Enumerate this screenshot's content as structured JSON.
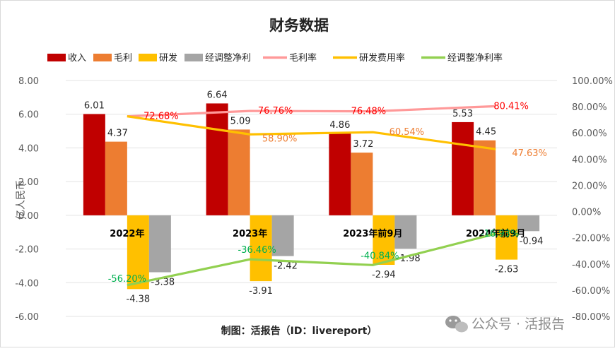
{
  "chart_data": {
    "type": "bar",
    "title": "财务数据",
    "ylabel": "亿人民币",
    "categories": [
      "2022年",
      "2023年",
      "2023年前9月",
      "2024年前9月"
    ],
    "ylim": [
      -6,
      8
    ],
    "yticks": [
      "8.00",
      "6.00",
      "4.00",
      "2.00",
      "0.00",
      "-2.00",
      "-4.00",
      "-6.00"
    ],
    "y2lim": [
      -80,
      100
    ],
    "y2ticks": [
      "100.00%",
      "80.00%",
      "60.00%",
      "40.00%",
      "20.00%",
      "0.00%",
      "-20.00%",
      "-40.00%",
      "-60.00%",
      "-80.00%"
    ],
    "legend_position": "top",
    "grid": true,
    "bar_series": [
      {
        "name": "收入",
        "color": "#c00000",
        "values": [
          6.01,
          6.64,
          4.86,
          5.53
        ],
        "labels": [
          "6.01",
          "6.64",
          "4.86",
          "5.53"
        ]
      },
      {
        "name": "毛利",
        "color": "#ed7d31",
        "values": [
          4.37,
          5.09,
          3.72,
          4.45
        ],
        "labels": [
          "4.37",
          "5.09",
          "3.72",
          "4.45"
        ]
      },
      {
        "name": "研发",
        "color": "#ffc000",
        "values": [
          -4.38,
          -3.91,
          -2.94,
          -2.63
        ],
        "labels": [
          "-4.38",
          "-3.91",
          "-2.94",
          "-2.63"
        ]
      },
      {
        "name": "经调整净利",
        "color": "#a5a5a5",
        "values": [
          -3.38,
          -2.42,
          -1.98,
          -0.94
        ],
        "labels": [
          "-3.38",
          "-2.42",
          "-1.98",
          "-0.94"
        ]
      }
    ],
    "line_series": [
      {
        "name": "毛利率",
        "color": "#ff9999",
        "label_color": "#ff0000",
        "values": [
          72.68,
          76.76,
          76.48,
          80.41
        ],
        "labels": [
          "72.68%",
          "76.76%",
          "76.48%",
          "80.41%"
        ]
      },
      {
        "name": "研发费用率",
        "color": "#ffc000",
        "label_color": "#ed7d31",
        "values": [
          72.68,
          58.9,
          60.54,
          47.63
        ],
        "labels": [
          "",
          "58.90%",
          "60.54%",
          "47.63%"
        ]
      },
      {
        "name": "经调整净利率",
        "color": "#92d050",
        "label_color": "#00b050",
        "values": [
          -56.2,
          -36.46,
          -40.84,
          -16.93
        ],
        "labels": [
          "-56.20%",
          "-36.46%",
          "-40.84%",
          "-16.93%"
        ]
      }
    ]
  },
  "footer": {
    "credit": "制图：活报告（ID：livereport）",
    "watermark": "公众号 · 活报告"
  }
}
